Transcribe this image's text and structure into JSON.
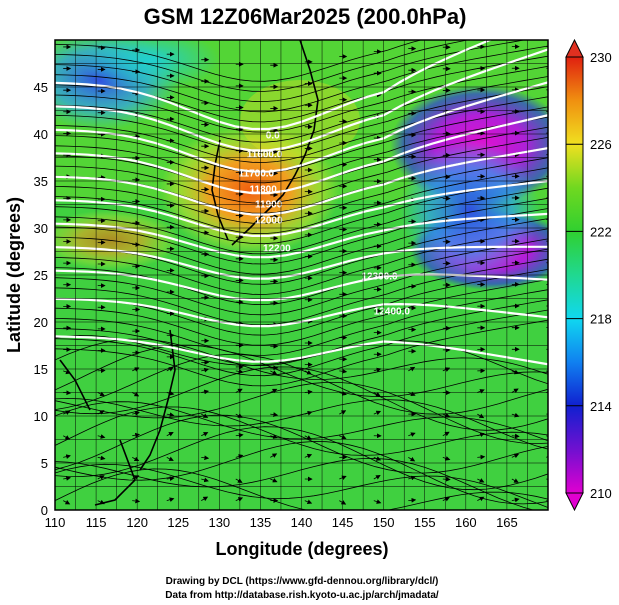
{
  "chart_data": {
    "type": "heatmap",
    "title": "GSM 12Z06Mar2025 (200.0hPa)",
    "xlabel": "Longitude (degrees)",
    "ylabel": "Latitude  (degrees)",
    "xlim": [
      110,
      170
    ],
    "ylim": [
      0,
      50
    ],
    "x_ticks": [
      110,
      115,
      120,
      125,
      130,
      135,
      140,
      145,
      150,
      155,
      160,
      165
    ],
    "y_ticks": [
      0,
      5,
      10,
      15,
      20,
      25,
      30,
      35,
      40,
      45
    ],
    "colorbar": {
      "min": 210,
      "max": 230,
      "ticks": [
        210,
        214,
        218,
        222,
        226,
        230
      ]
    },
    "contour_labels": [
      {
        "text": "0.0",
        "lon": 136.5,
        "lat": 39.5
      },
      {
        "text": "11600.0",
        "lon": 135.5,
        "lat": 37.5
      },
      {
        "text": "11700.0",
        "lon": 134.5,
        "lat": 35.5
      },
      {
        "text": "11800.",
        "lon": 135.5,
        "lat": 33.8
      },
      {
        "text": "11900",
        "lon": 136.0,
        "lat": 32.2
      },
      {
        "text": "12000",
        "lon": 136.0,
        "lat": 30.5
      },
      {
        "text": "12200",
        "lon": 137.0,
        "lat": 27.5
      },
      {
        "text": "12300.0",
        "lon": 149.5,
        "lat": 24.5
      },
      {
        "text": "12400.0",
        "lon": 151.0,
        "lat": 20.8
      }
    ],
    "credits": [
      "Drawing by DCL (https://www.gfd-dennou.org/library/dcl/)",
      "Data from http://database.rish.kyoto-u.ac.jp/arch/jmadata/"
    ]
  },
  "colors": {
    "field_low": "#cc00cc",
    "field_mid": "#22cc22",
    "field_high": "#e83000",
    "contour": "#ffffff",
    "stream": "#000000"
  }
}
